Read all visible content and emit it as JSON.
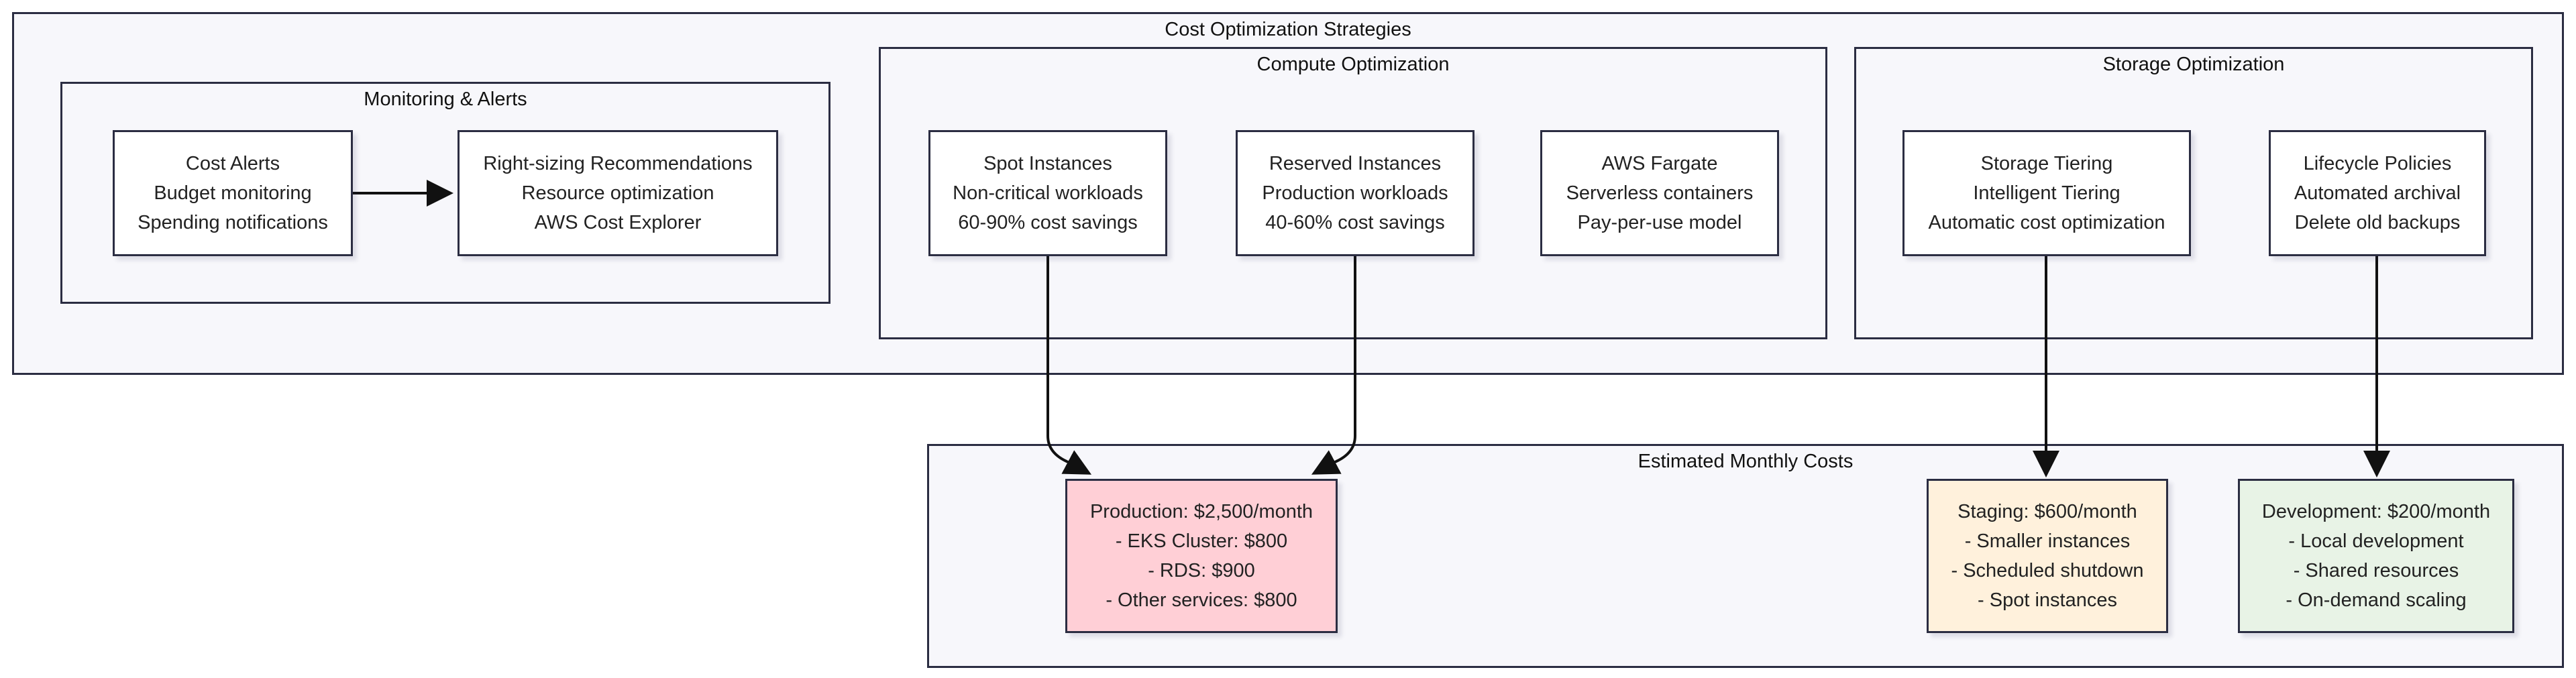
{
  "diagram": {
    "outer_group": {
      "title": "Cost Optimization Strategies"
    },
    "monitoring_group": {
      "title": "Monitoring & Alerts",
      "nodes": {
        "cost_alerts": [
          "Cost Alerts",
          "Budget monitoring",
          "Spending notifications"
        ],
        "right_sizing": [
          "Right-sizing Recommendations",
          "Resource optimization",
          "AWS Cost Explorer"
        ]
      }
    },
    "compute_group": {
      "title": "Compute Optimization",
      "nodes": {
        "spot": [
          "Spot Instances",
          "Non-critical workloads",
          "60-90% cost savings"
        ],
        "reserved": [
          "Reserved Instances",
          "Production workloads",
          "40-60% cost savings"
        ],
        "fargate": [
          "AWS Fargate",
          "Serverless containers",
          "Pay-per-use model"
        ]
      }
    },
    "storage_group": {
      "title": "Storage Optimization",
      "nodes": {
        "tiering": [
          "Storage Tiering",
          "Intelligent Tiering",
          "Automatic cost optimization"
        ],
        "lifecycle": [
          "Lifecycle Policies",
          "Automated archival",
          "Delete old backups"
        ]
      }
    },
    "costs_group": {
      "title": "Estimated Monthly Costs",
      "nodes": {
        "production": [
          "Production: $2,500/month",
          "- EKS Cluster: $800",
          "- RDS: $900",
          "- Other services: $800"
        ],
        "staging": [
          "Staging: $600/month",
          "- Smaller instances",
          "- Scheduled shutdown",
          "- Spot instances"
        ],
        "development": [
          "Development: $200/month",
          "- Local development",
          "- Shared resources",
          "- On-demand scaling"
        ]
      }
    },
    "colors": {
      "border": "#2b2d42",
      "group_fill": "#f7f7fb",
      "node_fill": "#ffffff",
      "production_fill": "#ffcfd6",
      "staging_fill": "#fff1dc",
      "development_fill": "#e8f3e6"
    }
  }
}
